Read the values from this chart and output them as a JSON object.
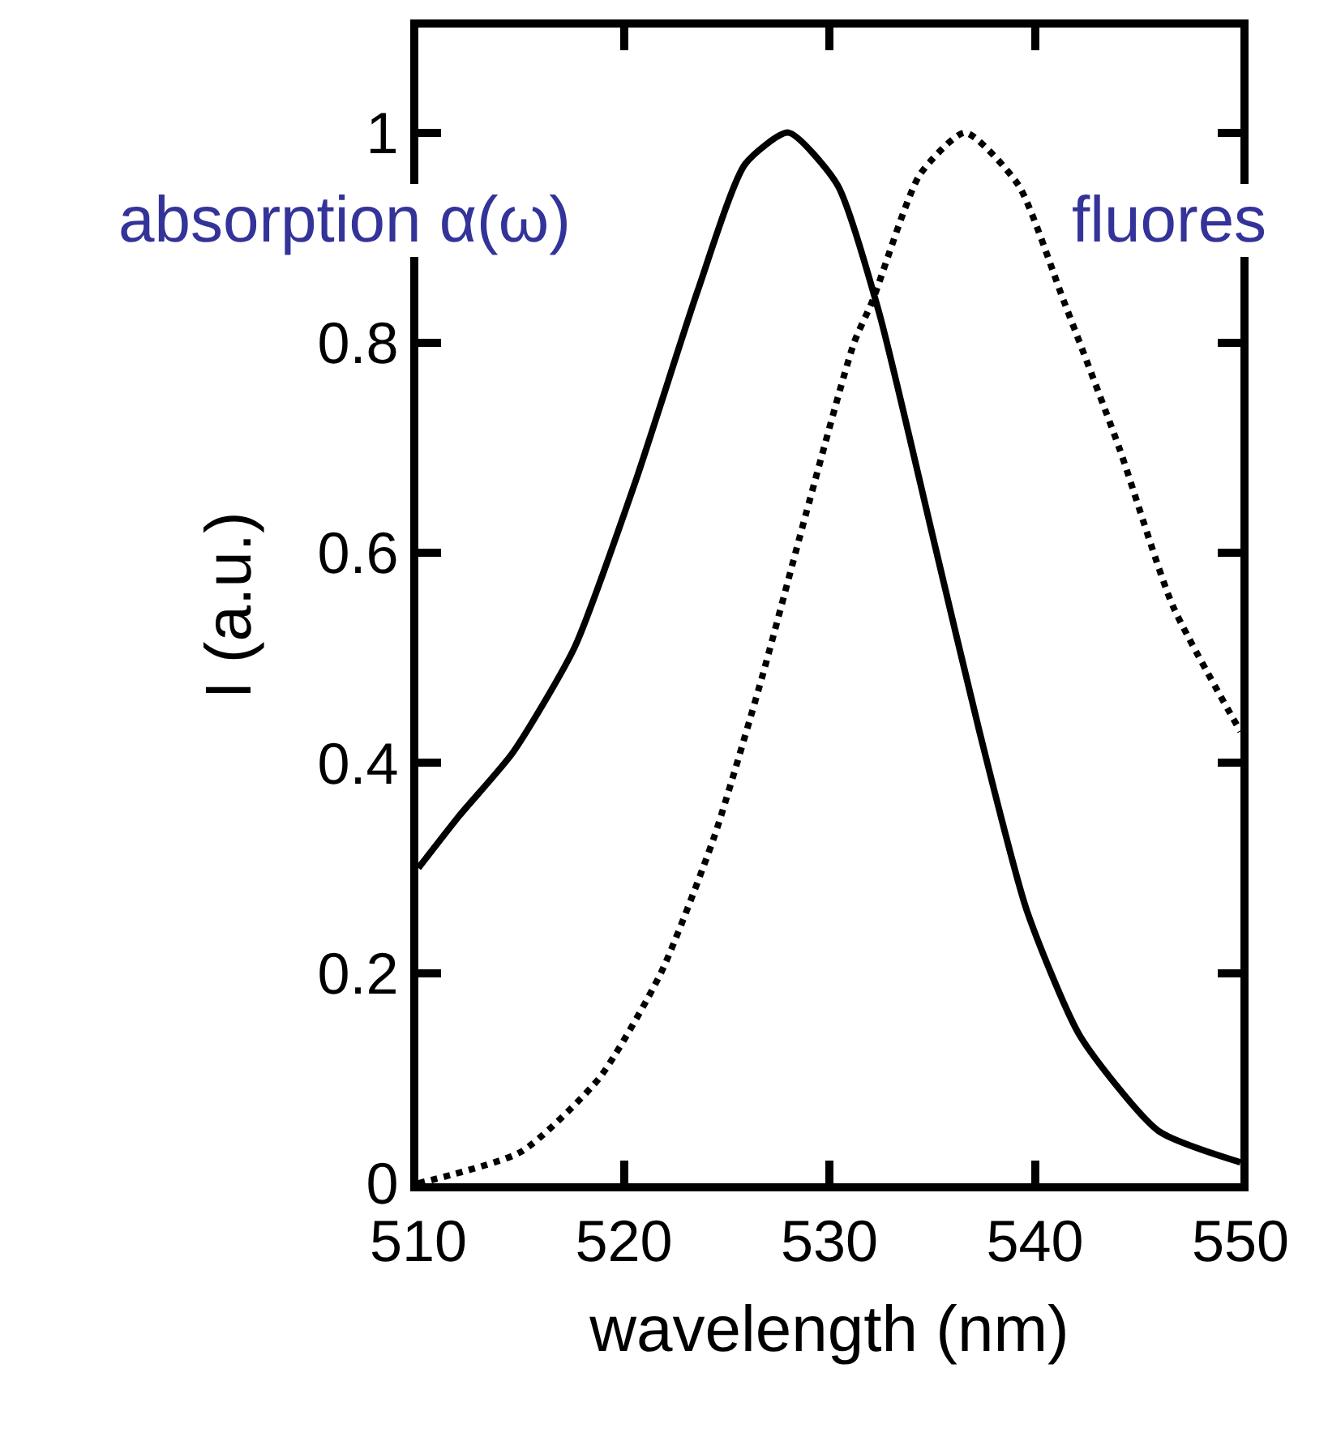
{
  "chart_data": {
    "type": "line",
    "xlabel": "wavelength (nm)",
    "ylabel": "I (a.u.)",
    "xlim": [
      510,
      550
    ],
    "xticks": [
      510,
      520,
      530,
      540,
      550
    ],
    "ylim": [
      0,
      1.1
    ],
    "yticks": [
      0,
      0.2,
      0.4,
      0.6,
      0.8,
      1
    ],
    "legend": false,
    "marker": "none",
    "annotations": [
      "absorption α(ω)",
      "fluores"
    ],
    "series": [
      {
        "color": "#000000",
        "line_style": "solid",
        "x": [
          510,
          512,
          514.6,
          517.6,
          520.6,
          523.6,
          525.9,
          528.0,
          530.4,
          532.4,
          535.1,
          537.3,
          539.6,
          542.2,
          546.0,
          550
        ],
        "values": [
          0.3,
          0.35,
          0.41,
          0.51,
          0.67,
          0.85,
          0.97,
          1.0,
          0.95,
          0.83,
          0.61,
          0.43,
          0.26,
          0.14,
          0.05,
          0.02
        ]
      },
      {
        "color": "#000000",
        "line_style": "dotted",
        "x": [
          510,
          515.0,
          518.8,
          521.8,
          524.4,
          526.7,
          528.9,
          531.2,
          532.1,
          534.4,
          536.6,
          539.2,
          541.4,
          544.1,
          546.7,
          550
        ],
        "values": [
          0.0,
          0.03,
          0.1,
          0.2,
          0.33,
          0.48,
          0.64,
          0.8,
          0.84,
          0.96,
          1.0,
          0.95,
          0.84,
          0.7,
          0.55,
          0.43
        ]
      }
    ]
  }
}
